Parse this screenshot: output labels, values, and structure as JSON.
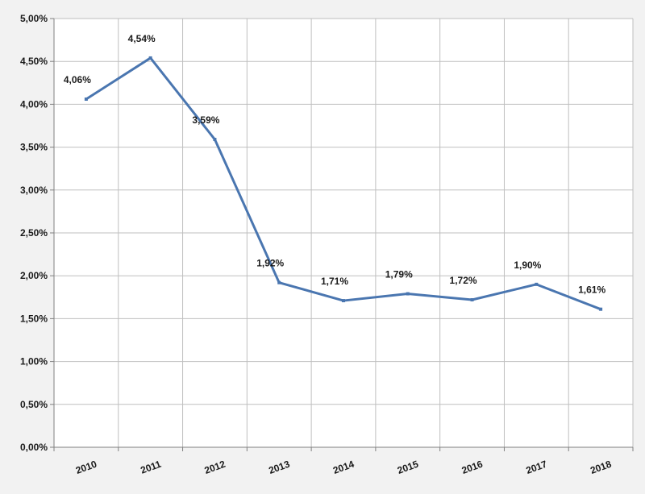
{
  "chart_data": {
    "type": "line",
    "title": "",
    "xlabel": "",
    "ylabel": "",
    "categories": [
      "2010",
      "2011",
      "2012",
      "2013",
      "2014",
      "2015",
      "2016",
      "2017",
      "2018"
    ],
    "series": [
      {
        "values": [
          4.06,
          4.54,
          3.59,
          1.92,
          1.71,
          1.79,
          1.72,
          1.9,
          1.61
        ],
        "labels": [
          "4,06%",
          "4,54%",
          "3,59%",
          "1,92%",
          "1,71%",
          "1,79%",
          "1,72%",
          "1,90%",
          "1,61%"
        ],
        "color": "#4a76b0"
      }
    ],
    "ylim": [
      0,
      5
    ],
    "y_ticks": [
      0,
      0.5,
      1,
      1.5,
      2,
      2.5,
      3,
      3.5,
      4,
      4.5,
      5
    ],
    "y_tick_labels": [
      "0,00%",
      "0,50%",
      "1,00%",
      "1,50%",
      "2,00%",
      "2,50%",
      "3,00%",
      "3,50%",
      "4,00%",
      "4,50%",
      "5,00%"
    ],
    "grid": true,
    "legend": "none",
    "background": "#f2f2f2",
    "plot_background": "#ffffff",
    "grid_color": "#bfbfbf"
  }
}
